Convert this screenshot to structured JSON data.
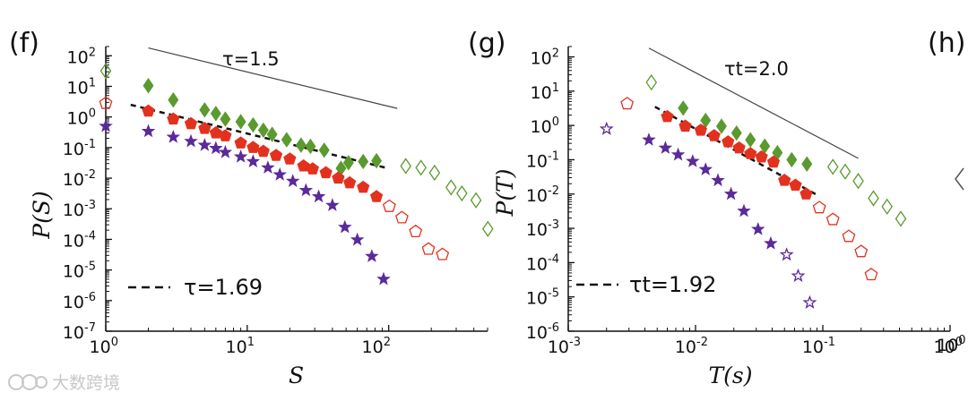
{
  "colors": {
    "green": "#5a9a2e",
    "red": "#e2321f",
    "purple": "#5a2a9a",
    "axis": "#111111",
    "watermark": "#c8c8c8"
  },
  "watermark": {
    "text": "大数跨境"
  },
  "chart_data": [
    {
      "type": "scatter",
      "panel_label": "(f)",
      "xlabel": "S",
      "ylabel": "P(S)",
      "xscale": "log",
      "yscale": "log",
      "xlim": [
        1,
        500
      ],
      "ylim": [
        1e-07,
        200
      ],
      "x_tick_labels": [
        {
          "base": "10",
          "exp": "0"
        },
        {
          "base": "10",
          "exp": "1"
        },
        {
          "base": "10",
          "exp": "2"
        }
      ],
      "y_tick_labels": [
        {
          "base": "10",
          "exp": "2"
        },
        {
          "base": "10",
          "exp": "1"
        },
        {
          "base": "10",
          "exp": "0"
        },
        {
          "base": "10",
          "exp": "-1"
        },
        {
          "base": "10",
          "exp": "-2"
        },
        {
          "base": "10",
          "exp": "-3"
        },
        {
          "base": "10",
          "exp": "-4"
        },
        {
          "base": "10",
          "exp": "-5"
        },
        {
          "base": "10",
          "exp": "-6"
        },
        {
          "base": "10",
          "exp": "-7"
        }
      ],
      "reference_line": {
        "label": "τ=1.5",
        "x": [
          2,
          115
        ],
        "y": [
          180,
          1.9
        ]
      },
      "fit_line": {
        "legend": "τ=1.69",
        "x": [
          1.5,
          95
        ],
        "y": [
          2.5,
          0.022
        ]
      },
      "series": [
        {
          "name": "green",
          "marker": "diamond",
          "color": "green",
          "x": [
            2,
            3,
            5,
            6,
            7,
            9,
            11,
            13,
            15,
            19,
            24,
            28,
            35,
            46,
            52,
            66,
            82
          ],
          "y": [
            10.5,
            3.6,
            1.7,
            1.3,
            0.85,
            0.7,
            0.55,
            0.37,
            0.27,
            0.18,
            0.12,
            0.11,
            0.082,
            0.021,
            0.032,
            0.035,
            0.037
          ]
        },
        {
          "name": "green-open",
          "marker": "diamond",
          "color": "green",
          "open": true,
          "x": [
            1.0,
            132,
            169,
            211,
            276,
            329,
            414,
            502
          ],
          "y": [
            32,
            0.025,
            0.022,
            0.015,
            0.005,
            0.0032,
            0.0019,
            0.00022
          ]
        },
        {
          "name": "red",
          "marker": "pentagon",
          "color": "red",
          "x": [
            2,
            3,
            4,
            5,
            6,
            7,
            9,
            11,
            13,
            16,
            20,
            25,
            29,
            36,
            44,
            53,
            66,
            82
          ],
          "y": [
            1.55,
            0.85,
            0.6,
            0.42,
            0.3,
            0.24,
            0.14,
            0.1,
            0.075,
            0.055,
            0.042,
            0.025,
            0.02,
            0.015,
            0.01,
            0.007,
            0.005,
            0.0025
          ]
        },
        {
          "name": "red-open",
          "marker": "pentagon",
          "color": "red",
          "open": true,
          "x": [
            1.0,
            101,
            124,
            155,
            191,
            240
          ],
          "y": [
            2.8,
            0.0012,
            0.00051,
            0.00018,
            4.8e-05,
            3.2e-05
          ]
        },
        {
          "name": "purple",
          "marker": "star",
          "color": "purple",
          "open": false,
          "x": [
            1.0,
            2,
            3,
            4,
            5,
            6,
            7,
            9,
            11,
            14,
            17,
            21,
            26,
            32,
            40,
            49,
            60,
            76,
            92
          ],
          "y": [
            0.5,
            0.34,
            0.22,
            0.16,
            0.12,
            0.095,
            0.07,
            0.05,
            0.035,
            0.022,
            0.013,
            0.008,
            0.004,
            0.0025,
            0.0013,
            0.00025,
            9.7e-05,
            2.8e-05,
            5e-06
          ]
        }
      ]
    },
    {
      "type": "scatter",
      "panel_label": "(g)",
      "xlabel": "T(s)",
      "ylabel": "P(T)",
      "xscale": "log",
      "yscale": "log",
      "xlim": [
        0.001,
        1
      ],
      "ylim": [
        1e-06,
        200
      ],
      "x_tick_labels": [
        {
          "base": "10",
          "exp": "-3"
        },
        {
          "base": "10",
          "exp": "-2"
        },
        {
          "base": "10",
          "exp": "-1"
        },
        {
          "base": "10",
          "exp": "0"
        }
      ],
      "y_tick_labels": [
        {
          "base": "10",
          "exp": "2"
        },
        {
          "base": "10",
          "exp": "1"
        },
        {
          "base": "10",
          "exp": "0"
        },
        {
          "base": "10",
          "exp": "-1"
        },
        {
          "base": "10",
          "exp": "-2"
        },
        {
          "base": "10",
          "exp": "-3"
        },
        {
          "base": "10",
          "exp": "-4"
        },
        {
          "base": "10",
          "exp": "-5"
        },
        {
          "base": "10",
          "exp": "-6"
        }
      ],
      "reference_line": {
        "label": "τt=2.0",
        "x": [
          0.0043,
          0.19
        ],
        "y": [
          180,
          0.11
        ]
      },
      "fit_line": {
        "legend": "τt=1.92",
        "x": [
          0.0048,
          0.092
        ],
        "y": [
          3.5,
          0.009
        ]
      },
      "series": [
        {
          "name": "green",
          "marker": "diamond",
          "color": "green",
          "x": [
            0.008,
            0.012,
            0.016,
            0.021,
            0.027,
            0.035,
            0.044,
            0.057,
            0.075
          ],
          "y": [
            3.2,
            1.4,
            0.95,
            0.6,
            0.38,
            0.25,
            0.16,
            0.1,
            0.075
          ]
        },
        {
          "name": "green-open",
          "marker": "diamond",
          "color": "green",
          "open": true,
          "x": [
            0.0045,
            0.12,
            0.15,
            0.19,
            0.25,
            0.32,
            0.41
          ],
          "y": [
            18,
            0.062,
            0.045,
            0.024,
            0.0075,
            0.0043,
            0.0019
          ]
        },
        {
          "name": "red",
          "marker": "pentagon",
          "color": "red",
          "x": [
            0.006,
            0.0083,
            0.011,
            0.014,
            0.018,
            0.022,
            0.027,
            0.033,
            0.041,
            0.05,
            0.061,
            0.074
          ],
          "y": [
            1.8,
            0.95,
            0.72,
            0.5,
            0.33,
            0.22,
            0.15,
            0.12,
            0.085,
            0.025,
            0.018,
            0.01
          ]
        },
        {
          "name": "red-open",
          "marker": "pentagon",
          "color": "red",
          "open": true,
          "x": [
            0.0029,
            0.094,
            0.12,
            0.16,
            0.2,
            0.24
          ],
          "y": [
            4.3,
            0.004,
            0.0018,
            0.00058,
            0.00021,
            4.45e-05
          ]
        },
        {
          "name": "purple",
          "marker": "star",
          "color": "purple",
          "x": [
            0.0043,
            0.0058,
            0.0073,
            0.0095,
            0.012,
            0.015,
            0.019,
            0.024,
            0.031,
            0.039
          ],
          "y": [
            0.38,
            0.22,
            0.14,
            0.09,
            0.052,
            0.025,
            0.01,
            0.0032,
            0.00094,
            0.00036
          ]
        },
        {
          "name": "purple-open",
          "marker": "star",
          "color": "purple",
          "open": true,
          "x": [
            0.002,
            0.052,
            0.064,
            0.079
          ],
          "y": [
            0.79,
            0.00017,
            4.1e-05,
            6.8e-06
          ]
        }
      ]
    }
  ],
  "partial_panel": {
    "panel_label": "(h)",
    "x_tick_label": {
      "base": "10",
      "exp": "0"
    }
  }
}
